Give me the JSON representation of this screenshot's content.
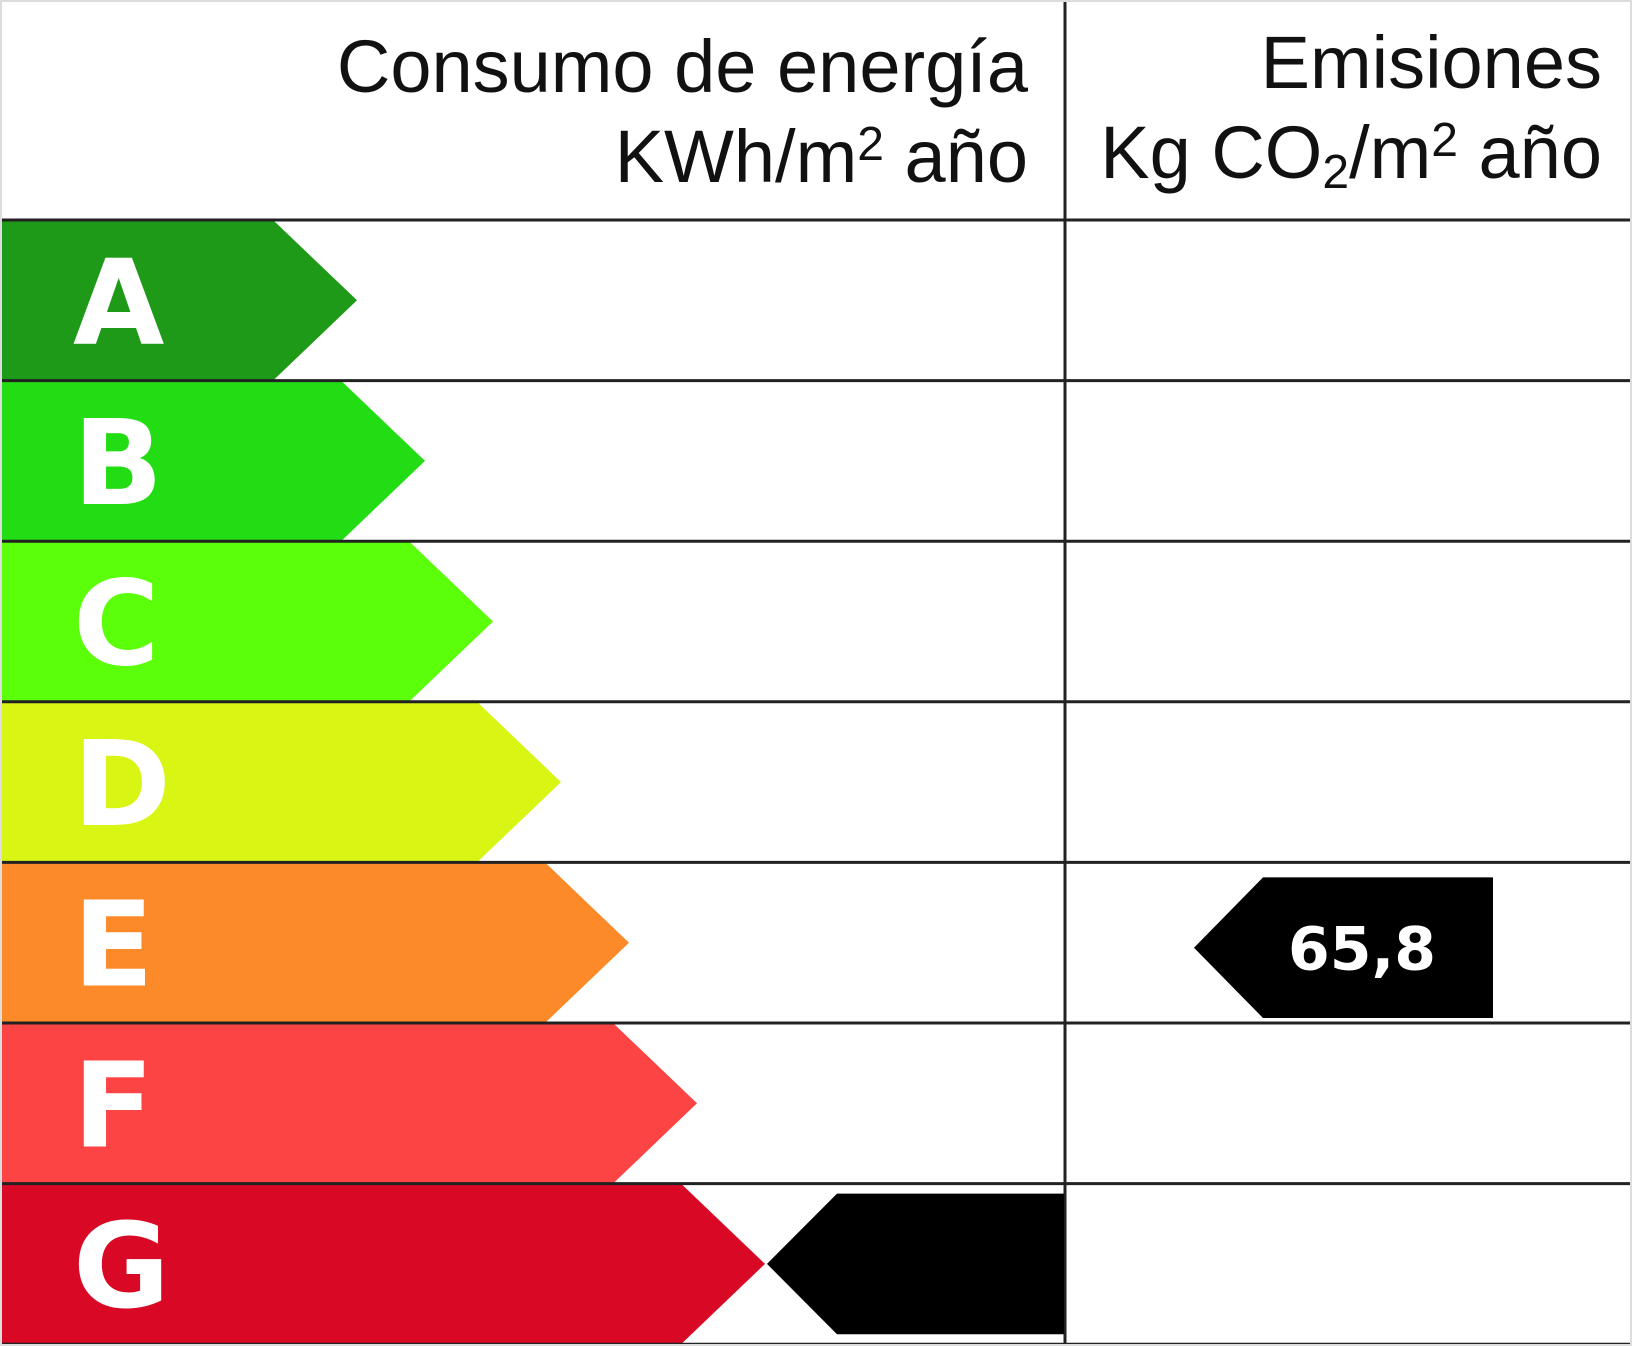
{
  "chart_data": {
    "type": "energy-rating-label",
    "columns": [
      {
        "title": "Consumo de energía",
        "unit_parts": [
          "KWh/m",
          "2",
          " año"
        ],
        "rating": "G",
        "value": ""
      },
      {
        "title": "Emisiones",
        "unit_parts": [
          "Kg CO",
          "2",
          "/m",
          "2",
          " año"
        ],
        "rating": "E",
        "value": "65,8"
      }
    ],
    "classes": [
      {
        "label": "A",
        "color": "#1f9a18"
      },
      {
        "label": "B",
        "color": "#22dd14"
      },
      {
        "label": "C",
        "color": "#5cff0a"
      },
      {
        "label": "D",
        "color": "#d8f514"
      },
      {
        "label": "E",
        "color": "#fd8a28"
      },
      {
        "label": "F",
        "color": "#fd4444"
      },
      {
        "label": "G",
        "color": "#d90824"
      }
    ],
    "indicator_color": "#000000"
  }
}
